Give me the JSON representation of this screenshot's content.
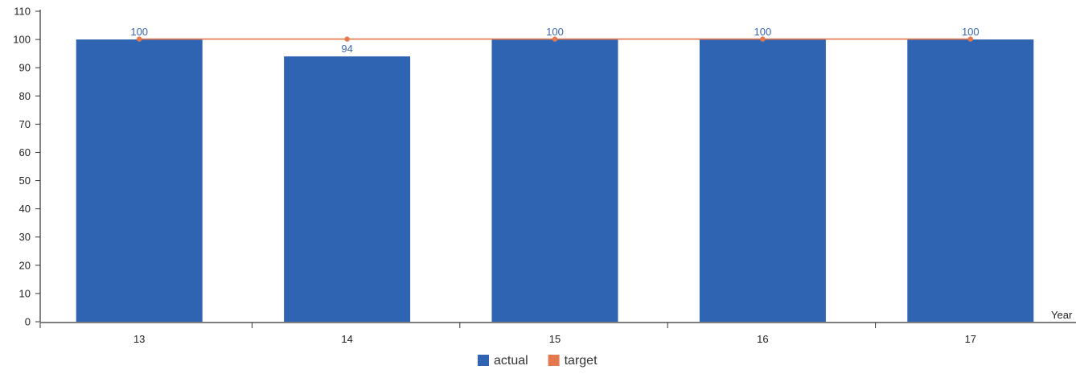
{
  "chart_data": {
    "type": "bar",
    "categories": [
      "13",
      "14",
      "15",
      "16",
      "17"
    ],
    "series": [
      {
        "name": "actual",
        "kind": "bar",
        "color": "#2f64b3",
        "values": [
          100,
          94,
          100,
          100,
          100
        ]
      },
      {
        "name": "target",
        "kind": "line",
        "color": "#e5794d",
        "values": [
          100,
          100,
          100,
          100,
          100
        ]
      }
    ],
    "data_labels": [
      "100",
      "94",
      "100",
      "100",
      "100"
    ],
    "data_label_color": "#3a66b4",
    "xlabel": "Year",
    "ylabel": "",
    "ylim": [
      0,
      110
    ],
    "yticks": [
      0,
      10,
      20,
      30,
      40,
      50,
      60,
      70,
      80,
      90,
      100,
      110
    ],
    "grid": false,
    "legend_position": "bottom-center"
  }
}
